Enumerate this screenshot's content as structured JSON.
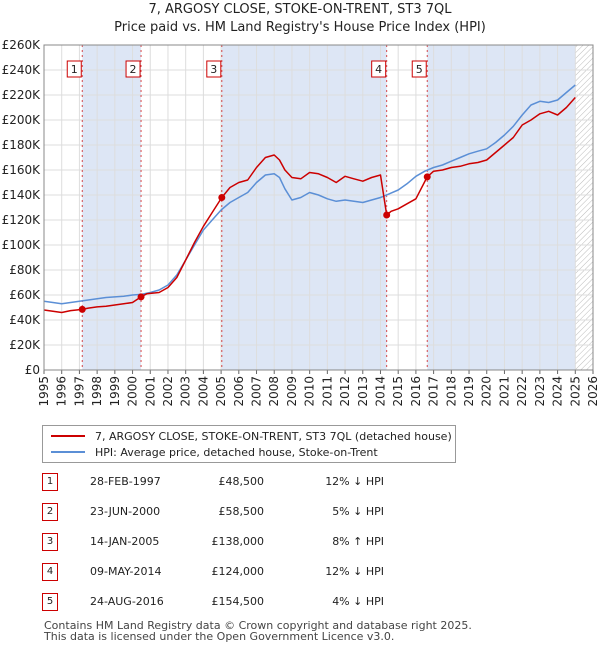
{
  "title_line1": "7, ARGOSY CLOSE, STOKE-ON-TRENT, ST3 7QL",
  "title_line2": "Price paid vs. HM Land Registry's House Price Index (HPI)",
  "colors": {
    "price": "#cc0000",
    "hpi": "#5b8fd6",
    "band": "#dde6f5",
    "marker_border": "#cc0000"
  },
  "chart_data": {
    "type": "line",
    "xlim": [
      1995,
      2026
    ],
    "ylim": [
      0,
      260000
    ],
    "x_ticks": [
      1995,
      1996,
      1997,
      1998,
      1999,
      2000,
      2001,
      2002,
      2003,
      2004,
      2005,
      2006,
      2007,
      2008,
      2009,
      2010,
      2011,
      2012,
      2013,
      2014,
      2015,
      2016,
      2017,
      2018,
      2019,
      2020,
      2021,
      2022,
      2023,
      2024,
      2025,
      2026
    ],
    "y_ticks": [
      {
        "value": 0,
        "label": "£0"
      },
      {
        "value": 20000,
        "label": "£20K"
      },
      {
        "value": 40000,
        "label": "£40K"
      },
      {
        "value": 60000,
        "label": "£60K"
      },
      {
        "value": 80000,
        "label": "£80K"
      },
      {
        "value": 100000,
        "label": "£100K"
      },
      {
        "value": 120000,
        "label": "£120K"
      },
      {
        "value": 140000,
        "label": "£140K"
      },
      {
        "value": 160000,
        "label": "£160K"
      },
      {
        "value": 180000,
        "label": "£180K"
      },
      {
        "value": 200000,
        "label": "£200K"
      },
      {
        "value": 220000,
        "label": "£220K"
      },
      {
        "value": 240000,
        "label": "£240K"
      },
      {
        "value": 260000,
        "label": "£260K"
      }
    ],
    "grid": true,
    "series": [
      {
        "name": "7, ARGOSY CLOSE, STOKE-ON-TRENT, ST3 7QL (detached house)",
        "x": [
          1995.0,
          1995.5,
          1996.0,
          1996.5,
          1997.16,
          1997.5,
          1998.0,
          1998.5,
          1999.0,
          1999.5,
          2000.0,
          2000.48,
          2000.8,
          2001.5,
          2002.0,
          2002.5,
          2003.0,
          2003.5,
          2004.0,
          2004.5,
          2005.04,
          2005.5,
          2006.0,
          2006.5,
          2007.0,
          2007.5,
          2008.0,
          2008.3,
          2008.6,
          2009.0,
          2009.5,
          2010.0,
          2010.5,
          2011.0,
          2011.5,
          2012.0,
          2012.5,
          2013.0,
          2013.5,
          2014.0,
          2014.35,
          2014.6,
          2015.0,
          2015.5,
          2016.0,
          2016.64,
          2017.0,
          2017.5,
          2018.0,
          2018.5,
          2019.0,
          2019.5,
          2020.0,
          2020.5,
          2021.0,
          2021.5,
          2022.0,
          2022.5,
          2023.0,
          2023.5,
          2024.0,
          2024.5,
          2025.0
        ],
        "y": [
          48000,
          47000,
          46000,
          47500,
          48500,
          49500,
          50500,
          51000,
          52000,
          53000,
          54000,
          58500,
          61000,
          62000,
          66000,
          74000,
          88000,
          102000,
          115000,
          126000,
          138000,
          146000,
          150000,
          152000,
          162000,
          170000,
          172000,
          168000,
          160000,
          154000,
          153000,
          158000,
          157000,
          154000,
          150000,
          155000,
          153000,
          151000,
          154000,
          156000,
          124000,
          127000,
          129000,
          133000,
          137000,
          154500,
          159000,
          160000,
          162000,
          163000,
          165000,
          166000,
          168000,
          174000,
          180000,
          186000,
          196000,
          200000,
          205000,
          207000,
          204000,
          210000,
          218000
        ]
      },
      {
        "name": "HPI: Average price, detached house, Stoke-on-Trent",
        "x": [
          1995.0,
          1995.5,
          1996.0,
          1996.5,
          1997.0,
          1997.5,
          1998.0,
          1998.5,
          1999.0,
          1999.5,
          2000.0,
          2000.5,
          2001.0,
          2001.5,
          2002.0,
          2002.5,
          2003.0,
          2003.5,
          2004.0,
          2004.5,
          2005.0,
          2005.5,
          2006.0,
          2006.5,
          2007.0,
          2007.5,
          2008.0,
          2008.3,
          2008.6,
          2009.0,
          2009.5,
          2010.0,
          2010.5,
          2011.0,
          2011.5,
          2012.0,
          2012.5,
          2013.0,
          2013.5,
          2014.0,
          2014.5,
          2015.0,
          2015.5,
          2016.0,
          2016.5,
          2017.0,
          2017.5,
          2018.0,
          2018.5,
          2019.0,
          2019.5,
          2020.0,
          2020.5,
          2021.0,
          2021.5,
          2022.0,
          2022.5,
          2023.0,
          2023.5,
          2024.0,
          2024.5,
          2025.0
        ],
        "y": [
          55000,
          54000,
          53000,
          54000,
          55000,
          56000,
          57000,
          58000,
          58500,
          59000,
          60000,
          60500,
          62000,
          64000,
          68000,
          76000,
          88000,
          100000,
          112000,
          120000,
          128000,
          134000,
          138000,
          142000,
          150000,
          156000,
          157000,
          154000,
          145000,
          136000,
          138000,
          142000,
          140000,
          137000,
          135000,
          136000,
          135000,
          134000,
          136000,
          138000,
          141000,
          144000,
          149000,
          155000,
          159000,
          162000,
          164000,
          167000,
          170000,
          173000,
          175000,
          177000,
          182000,
          188000,
          195000,
          204000,
          212000,
          215000,
          214000,
          216000,
          222000,
          228000
        ]
      }
    ],
    "sales": [
      {
        "n": "1",
        "x": 1997.16,
        "y": 48500
      },
      {
        "n": "2",
        "x": 2000.48,
        "y": 58500
      },
      {
        "n": "3",
        "x": 2005.04,
        "y": 138000
      },
      {
        "n": "4",
        "x": 2014.35,
        "y": 124000
      },
      {
        "n": "5",
        "x": 2016.64,
        "y": 154500
      }
    ],
    "shaded_bands": [
      [
        1997.16,
        2000.48
      ],
      [
        2005.04,
        2014.35
      ],
      [
        2016.64,
        2025.0
      ]
    ],
    "hatched_from": 2025.0
  },
  "legend": {
    "price_label": "7, ARGOSY CLOSE, STOKE-ON-TRENT, ST3 7QL (detached house)",
    "hpi_label": "HPI: Average price, detached house, Stoke-on-Trent"
  },
  "table": [
    {
      "n": "1",
      "date": "28-FEB-1997",
      "price": "£48,500",
      "diff": "12% ↓ HPI"
    },
    {
      "n": "2",
      "date": "23-JUN-2000",
      "price": "£58,500",
      "diff": "5% ↓ HPI"
    },
    {
      "n": "3",
      "date": "14-JAN-2005",
      "price": "£138,000",
      "diff": "8% ↑ HPI"
    },
    {
      "n": "4",
      "date": "09-MAY-2014",
      "price": "£124,000",
      "diff": "12% ↓ HPI"
    },
    {
      "n": "5",
      "date": "24-AUG-2016",
      "price": "£154,500",
      "diff": "4% ↓ HPI"
    }
  ],
  "footer_line1": "Contains HM Land Registry data © Crown copyright and database right 2025.",
  "footer_line2": "This data is licensed under the Open Government Licence v3.0."
}
